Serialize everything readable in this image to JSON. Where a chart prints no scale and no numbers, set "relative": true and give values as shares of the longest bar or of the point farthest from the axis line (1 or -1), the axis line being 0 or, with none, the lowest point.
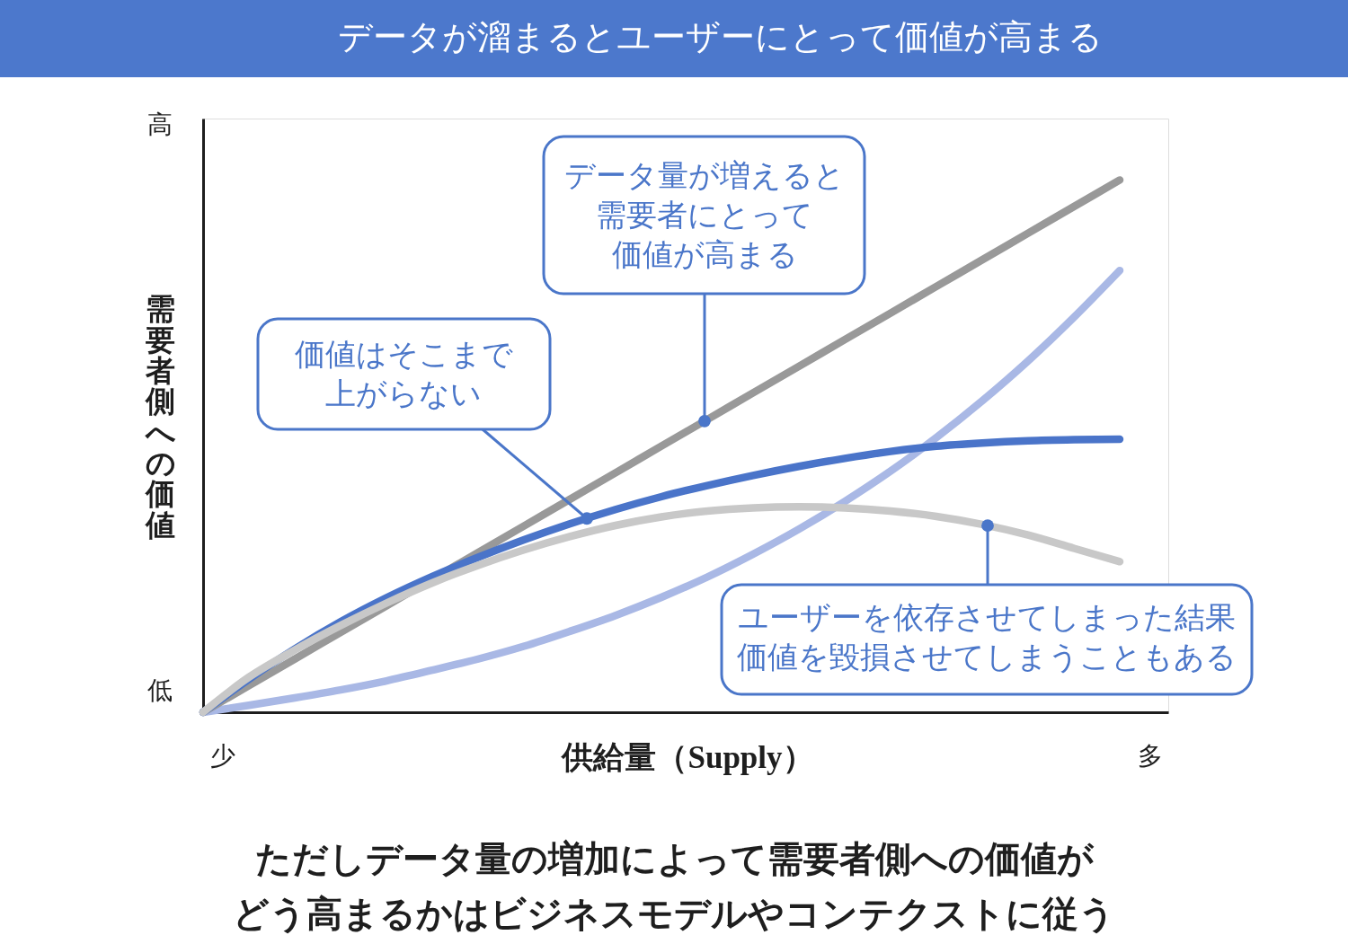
{
  "chart_data": {
    "type": "line",
    "title": "データが溜まるとユーザーにとって価値が高まる",
    "xlabel": "供給量（Supply）",
    "ylabel": "需要者側への価値",
    "relative": true,
    "line_style": "solid",
    "categories": [
      null,
      null,
      null,
      null,
      null,
      null,
      null,
      null,
      null,
      null,
      null,
      null,
      null,
      null,
      null,
      null,
      null,
      null,
      null,
      null,
      null
    ],
    "series": [
      {
        "color": "#a9b8e5",
        "values": [
          0,
          0.013,
          0.027,
          0.042,
          0.059,
          0.079,
          0.1,
          0.124,
          0.152,
          0.182,
          0.216,
          0.254,
          0.297,
          0.344,
          0.396,
          0.453,
          0.516,
          0.585,
          0.66,
          0.742,
          0.83
        ]
      },
      {
        "color": "#999999",
        "values": [
          0,
          0.05,
          0.1,
          0.15,
          0.2,
          0.25,
          0.3,
          0.35,
          0.4,
          0.45,
          0.5,
          0.55,
          0.6,
          0.65,
          0.7,
          0.75,
          0.8,
          0.85,
          0.9,
          0.95,
          1
        ]
      },
      {
        "color": "#4a74c9",
        "values": [
          0,
          0.062,
          0.119,
          0.17,
          0.215,
          0.255,
          0.291,
          0.324,
          0.354,
          0.381,
          0.405,
          0.426,
          0.445,
          0.462,
          0.477,
          0.49,
          0.5,
          0.506,
          0.51,
          0.512,
          0.513
        ]
      },
      {
        "color": "#c8c8c8",
        "values": [
          0,
          0.066,
          0.117,
          0.163,
          0.205,
          0.243,
          0.276,
          0.305,
          0.33,
          0.351,
          0.367,
          0.378,
          0.384,
          0.386,
          0.384,
          0.378,
          0.368,
          0.353,
          0.333,
          0.308,
          0.283
        ]
      }
    ],
    "annotations": [
      "データ量が増えると需要者にとって価値が高まる",
      "価値はそこまで上がらない",
      "ユーザーを依存させてしまった結果価値を毀損させてしまうこともある",
      "少",
      "多",
      "低",
      "高",
      "ただしデータ量の増加によって需要者側への価値がどう高まるかはビジネスモデルやコンテクストに従う"
    ]
  }
}
